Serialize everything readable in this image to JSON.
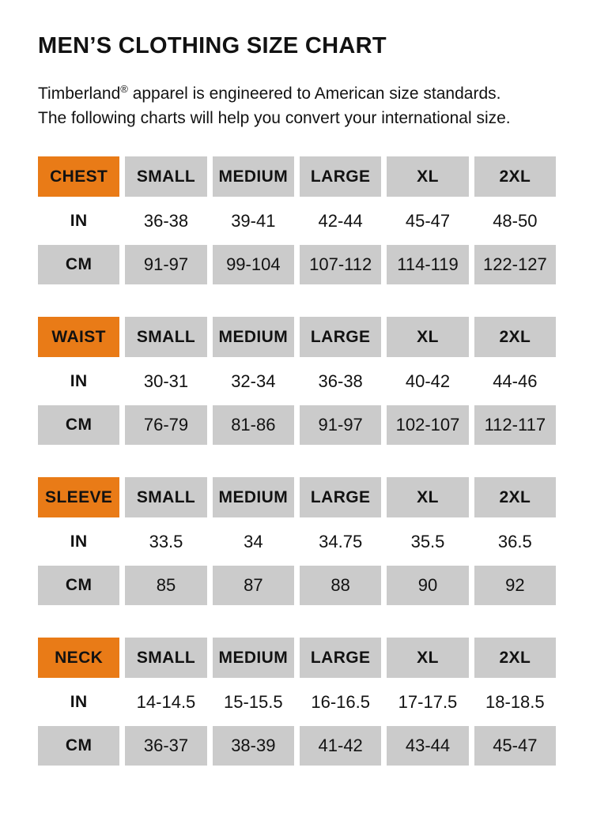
{
  "page": {
    "title": "MEN’S CLOTHING SIZE CHART",
    "intro_brand": "Timberland",
    "intro_reg": "®",
    "intro_text": " apparel is engineered to American size standards. The following charts will help you convert your international size."
  },
  "colors": {
    "accent_orange": "#E97B17",
    "cell_gray": "#CBCBCB",
    "text_black": "#121212",
    "background": "#FFFFFF"
  },
  "size_columns": [
    "SMALL",
    "MEDIUM",
    "LARGE",
    "XL",
    "2XL"
  ],
  "tables": [
    {
      "label": "CHEST",
      "rows": [
        {
          "unit": "IN",
          "values": [
            "36-38",
            "39-41",
            "42-44",
            "45-47",
            "48-50"
          ]
        },
        {
          "unit": "CM",
          "values": [
            "91-97",
            "99-104",
            "107-112",
            "114-119",
            "122-127"
          ]
        }
      ]
    },
    {
      "label": "WAIST",
      "rows": [
        {
          "unit": "IN",
          "values": [
            "30-31",
            "32-34",
            "36-38",
            "40-42",
            "44-46"
          ]
        },
        {
          "unit": "CM",
          "values": [
            "76-79",
            "81-86",
            "91-97",
            "102-107",
            "112-117"
          ]
        }
      ]
    },
    {
      "label": "SLEEVE",
      "rows": [
        {
          "unit": "IN",
          "values": [
            "33.5",
            "34",
            "34.75",
            "35.5",
            "36.5"
          ]
        },
        {
          "unit": "CM",
          "values": [
            "85",
            "87",
            "88",
            "90",
            "92"
          ]
        }
      ]
    },
    {
      "label": "NECK",
      "rows": [
        {
          "unit": "IN",
          "values": [
            "14-14.5",
            "15-15.5",
            "16-16.5",
            "17-17.5",
            "18-18.5"
          ]
        },
        {
          "unit": "CM",
          "values": [
            "36-37",
            "38-39",
            "41-42",
            "43-44",
            "45-47"
          ]
        }
      ]
    }
  ]
}
